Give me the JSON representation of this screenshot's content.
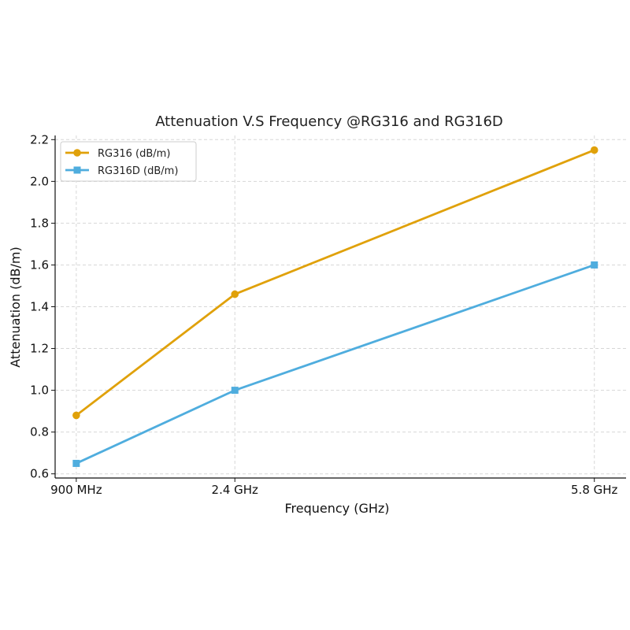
{
  "chart_data": {
    "type": "line",
    "title": "Attenuation V.S Frequency @RG316 and RG316D",
    "xlabel": "Frequency (GHz)",
    "ylabel": "Attenuation (dB/m)",
    "x": [
      0.9,
      2.4,
      5.8
    ],
    "x_tick_labels": [
      "900 MHz",
      "2.4 GHz",
      "5.8 GHz"
    ],
    "xlim": [
      0.7,
      6.1
    ],
    "ylim": [
      0.58,
      2.22
    ],
    "y_ticks": [
      0.6,
      0.8,
      1.0,
      1.2,
      1.4,
      1.6,
      1.8,
      2.0,
      2.2
    ],
    "y_tick_labels": [
      "0.6",
      "0.8",
      "1.0",
      "1.2",
      "1.4",
      "1.6",
      "1.8",
      "2.0",
      "2.2"
    ],
    "grid": true,
    "legend_position": "top-left",
    "series": [
      {
        "name": "RG316 (dB/m)",
        "values": [
          0.88,
          1.46,
          2.15
        ],
        "color": "#E0A10A",
        "marker": "circle"
      },
      {
        "name": "RG316D (dB/m)",
        "values": [
          0.65,
          1.0,
          1.6
        ],
        "color": "#4FADDE",
        "marker": "square"
      }
    ]
  }
}
